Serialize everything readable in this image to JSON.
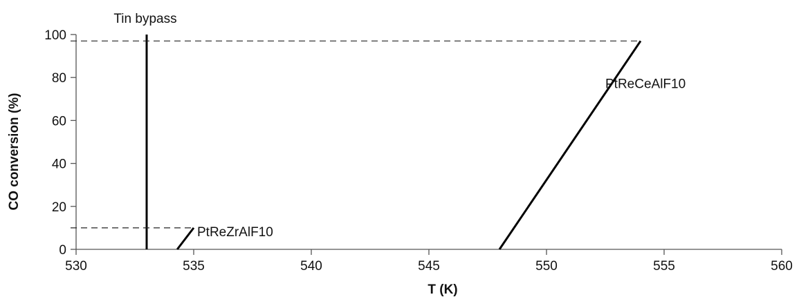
{
  "chart_data": {
    "type": "line",
    "title": "",
    "xlabel": "T (K)",
    "ylabel": "CO conversion (%)",
    "xlim": [
      530,
      560
    ],
    "ylim": [
      0,
      100
    ],
    "xticks": [
      "530",
      "535",
      "540",
      "545",
      "550",
      "555",
      "560"
    ],
    "yticks": [
      "0",
      "20",
      "40",
      "60",
      "80",
      "100"
    ],
    "grid": false,
    "legend": "none",
    "series": [
      {
        "name": "PtReZrAlF10",
        "x": [
          534.3,
          535.0
        ],
        "y": [
          0,
          10
        ]
      },
      {
        "name": "PtReCeAlF10",
        "x": [
          548.0,
          554.0
        ],
        "y": [
          0,
          97
        ]
      }
    ],
    "reference_lines": [
      {
        "label": "Tin bypass",
        "orientation": "vertical",
        "x": 533
      },
      {
        "orientation": "horizontal",
        "style": "dashed",
        "y": 97,
        "x_to": 554
      },
      {
        "orientation": "horizontal",
        "style": "dashed",
        "y": 10,
        "x_to": 535
      }
    ],
    "line_color": "#000000"
  }
}
